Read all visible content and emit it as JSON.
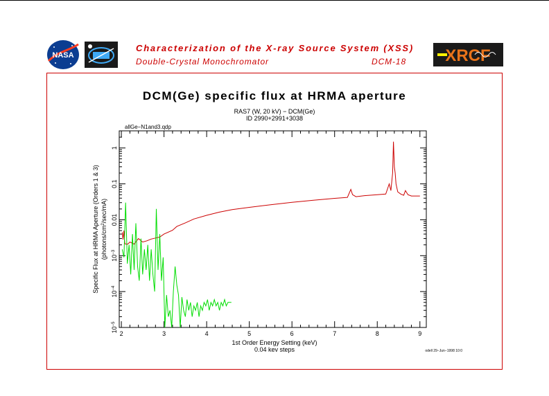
{
  "header": {
    "title": "Characterization of the X-ray Source System (XSS)",
    "subtitle": "Double-Crystal Monochromator",
    "code": "DCM-18",
    "logos": [
      "nasa-logo",
      "kit-patch-logo",
      "xrcf-logo"
    ],
    "xrcf_text": "XRCF",
    "nasa_text": "NASA"
  },
  "colors": {
    "accent": "#cc0000",
    "series_red": "#cc0000",
    "series_green": "#00dd00"
  },
  "chart_data": {
    "type": "line",
    "title": "DCM(Ge) specific flux at HRMA aperture",
    "subtitle_line1": "RAS7 (W, 20 kV) − DCM(Ge)",
    "subtitle_line2": "ID 2990+2991+3038",
    "file_label": "allGe−N1and3.qdp",
    "xlabel": "1st Order Energy Setting (keV)",
    "xlabel2": "0.04 kev steps",
    "ylabel_line1": "Specific Flux at HRMA Aperture (Orders 1 & 3)",
    "ylabel_line2_pre": "(photons/cm",
    "ylabel_line2_sup": "2",
    "ylabel_line2_post": "/sec/mA)",
    "footer_stamp": "odell 29−Jun−1998 10:0",
    "xlim": [
      1.95,
      9.15
    ],
    "ylim": [
      1e-05,
      3
    ],
    "yscale": "log",
    "grid": false,
    "x_ticks": [
      2,
      3,
      4,
      5,
      6,
      7,
      8,
      9
    ],
    "y_ticks": [
      {
        "value": 1,
        "label": "1",
        "exp": ""
      },
      {
        "value": 0.1,
        "label": "0.1",
        "exp": ""
      },
      {
        "value": 0.01,
        "label": "0.01",
        "exp": ""
      },
      {
        "value": 0.001,
        "label": "10",
        "exp": "−3"
      },
      {
        "value": 0.0001,
        "label": "10",
        "exp": "−4"
      },
      {
        "value": 1e-05,
        "label": "10",
        "exp": "−5"
      }
    ],
    "series": [
      {
        "name": "",
        "color": "#cc0000",
        "x": [
          2.02,
          2.04,
          2.06,
          2.08,
          2.1,
          2.15,
          2.2,
          2.3,
          2.4,
          2.5,
          2.6,
          2.7,
          2.8,
          2.9,
          3.0,
          3.2,
          3.3,
          3.5,
          3.7,
          4.0,
          4.3,
          4.6,
          5.0,
          5.5,
          6.0,
          6.5,
          7.0,
          7.3,
          7.38,
          7.42,
          7.5,
          7.7,
          8.0,
          8.2,
          8.28,
          8.32,
          8.36,
          8.38,
          8.4,
          8.42,
          8.44,
          8.48,
          8.55,
          8.62,
          8.66,
          8.72,
          8.8,
          9.0
        ],
        "values": [
          0.0045,
          0.0028,
          0.005,
          0.0022,
          0.0021,
          0.0021,
          0.0024,
          0.0021,
          0.003,
          0.0024,
          0.0026,
          0.0029,
          0.0031,
          0.0033,
          0.004,
          0.0051,
          0.0065,
          0.0082,
          0.0105,
          0.0133,
          0.0163,
          0.0192,
          0.0222,
          0.0263,
          0.0306,
          0.035,
          0.0395,
          0.042,
          0.07,
          0.05,
          0.044,
          0.047,
          0.05,
          0.052,
          0.1,
          0.065,
          0.2,
          1.5,
          0.3,
          0.2,
          0.1,
          0.06,
          0.052,
          0.048,
          0.065,
          0.05,
          0.046,
          0.046
        ]
      },
      {
        "name": "",
        "color": "#00dd00",
        "x": [
          2.02,
          2.06,
          2.1,
          2.14,
          2.18,
          2.22,
          2.26,
          2.3,
          2.34,
          2.38,
          2.42,
          2.46,
          2.5,
          2.54,
          2.58,
          2.62,
          2.66,
          2.7,
          2.74,
          2.78,
          2.82,
          2.86,
          2.9,
          2.94,
          2.98,
          3.02,
          3.06,
          3.1,
          3.14,
          3.18,
          3.22,
          3.26,
          3.3,
          3.34,
          3.38,
          3.42,
          3.46,
          3.5,
          3.54,
          3.58,
          3.62,
          3.66,
          3.7,
          3.74,
          3.78,
          3.82,
          3.86,
          3.9,
          3.94,
          3.98,
          4.02,
          4.06,
          4.1,
          4.14,
          4.18,
          4.22,
          4.26,
          4.3,
          4.34,
          4.38,
          4.42,
          4.46,
          4.5,
          4.54,
          4.58
        ],
        "values": [
          0.0015,
          0.0009,
          0.03,
          0.0006,
          0.002,
          0.0003,
          0.004,
          0.0004,
          0.008,
          0.0005,
          0.0002,
          0.003,
          0.0003,
          0.0015,
          0.0004,
          0.002,
          0.0002,
          0.0015,
          0.0003,
          0.0001,
          0.02,
          0.0004,
          0.004,
          0.0002,
          0.0009,
          1e-05,
          8e-05,
          2e-05,
          3e-05,
          1e-05,
          0.0001,
          0.0005,
          0.00015,
          8e-05,
          1e-05,
          7e-05,
          3e-05,
          2e-05,
          6e-05,
          3e-05,
          5e-05,
          2e-05,
          4e-05,
          3e-05,
          5e-05,
          2e-05,
          4e-05,
          3e-05,
          5e-05,
          4e-05,
          6e-05,
          3e-05,
          5e-05,
          4e-05,
          6e-05,
          4e-05,
          5e-05,
          3e-05,
          5e-05,
          4e-05,
          6e-05,
          4e-05,
          5e-05,
          5e-05,
          5e-05
        ]
      }
    ]
  }
}
